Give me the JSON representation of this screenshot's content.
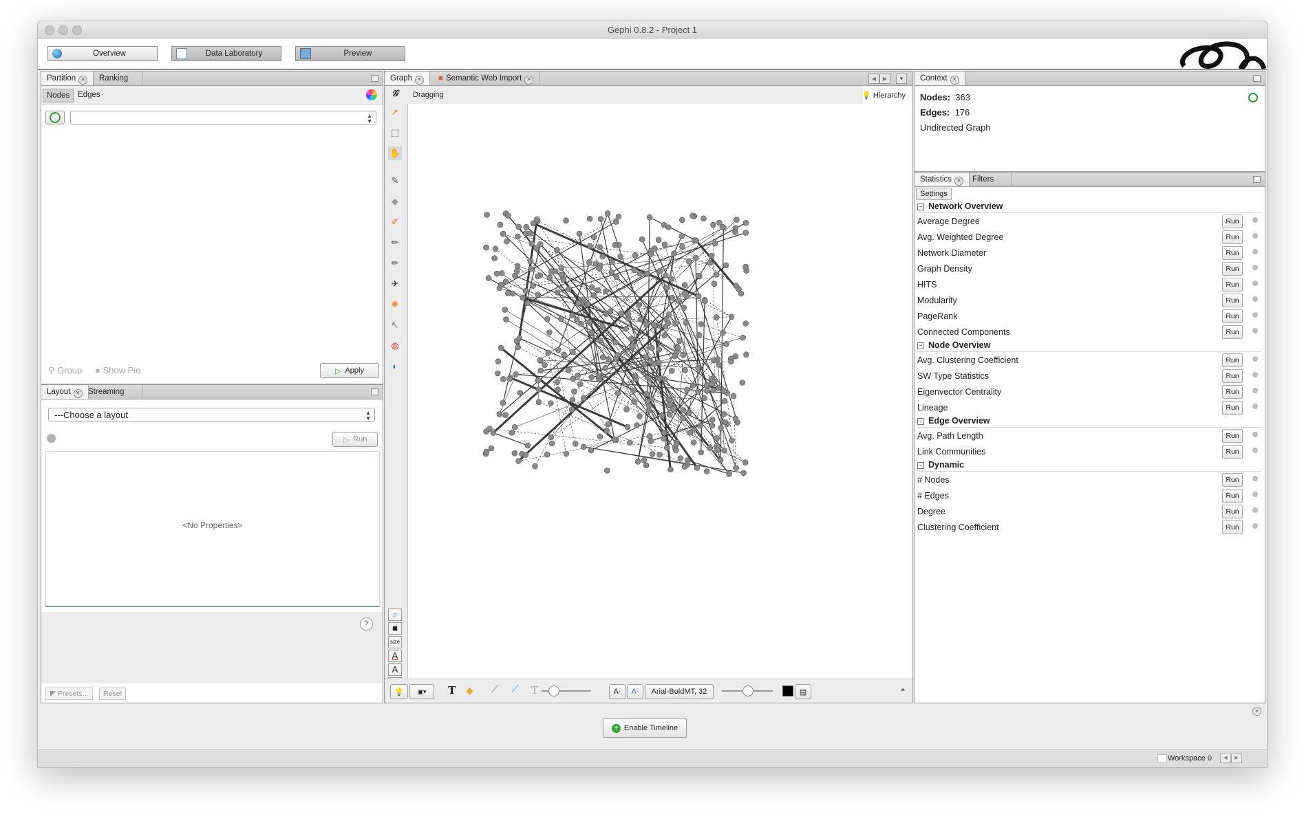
{
  "window": {
    "title": "Gephi 0.8.2 - Project 1"
  },
  "modes": [
    {
      "label": "Overview",
      "icon": "overview-globe-icon"
    },
    {
      "label": "Data Laboratory",
      "icon": "data-laboratory-icon"
    },
    {
      "label": "Preview",
      "icon": "preview-monitor-icon"
    }
  ],
  "partition": {
    "tabs": [
      "Partition",
      "Ranking"
    ],
    "subtabs": [
      "Nodes",
      "Edges"
    ],
    "group_label": "Group",
    "show_pie_label": "Show Pie",
    "apply_label": "Apply"
  },
  "layout": {
    "tabs": [
      "Layout",
      "Streaming"
    ],
    "choose": "---Choose a layout",
    "run_label": "Run",
    "no_properties": "<No Properties>",
    "help": "?",
    "presets": "Presets...",
    "reset": "Reset"
  },
  "graph": {
    "tabs": [
      "Graph",
      "Semantic Web Import"
    ],
    "dragging": "Dragging",
    "hierarchy": "Hierarchy",
    "size_label": "size",
    "font_label": "Arial-BoldMT, 32",
    "colors": {
      "node": "#8a8a8a",
      "edge": "#3c3c3c",
      "accent": "#2e9b2e"
    }
  },
  "context": {
    "title": "Context",
    "nodes_label": "Nodes:",
    "nodes_value": "363",
    "edges_label": "Edges:",
    "edges_value": "176",
    "graph_type": "Undirected Graph"
  },
  "statistics": {
    "tabs": [
      "Statistics",
      "Filters"
    ],
    "settings": "Settings",
    "run_label": "Run",
    "sections": [
      {
        "title": "Network Overview",
        "items": [
          "Average Degree",
          "Avg. Weighted Degree",
          "Network Diameter",
          "Graph Density",
          "HITS",
          "Modularity",
          "PageRank",
          "Connected Components"
        ]
      },
      {
        "title": "Node Overview",
        "items": [
          "Avg. Clustering Coefficient",
          "SW Type Statistics",
          "Eigenvector Centrality",
          "Lineage"
        ]
      },
      {
        "title": "Edge Overview",
        "items": [
          "Avg. Path Length",
          "Link Communities"
        ]
      },
      {
        "title": "Dynamic",
        "items": [
          "# Nodes",
          "# Edges",
          "Degree",
          "Clustering Coefficient"
        ]
      }
    ]
  },
  "timeline": {
    "enable_label": "Enable Timeline"
  },
  "status": {
    "workspace": "Workspace 0"
  }
}
